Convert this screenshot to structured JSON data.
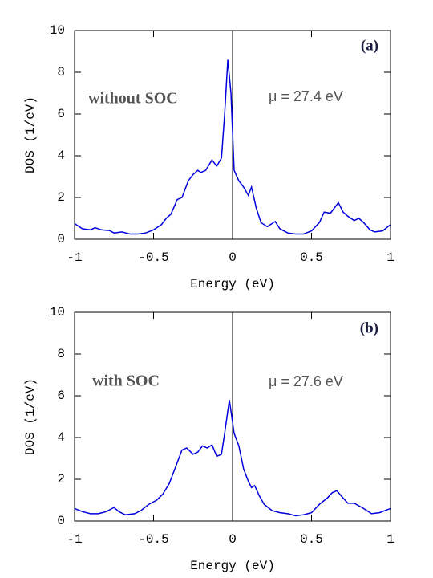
{
  "chart_data": [
    {
      "type": "line",
      "panel_label": "(a)",
      "annotations": [
        "without SOC",
        "μ = 27.4 eV"
      ],
      "x_label": "Energy (eV)",
      "y_label": "DOS (1/eV)",
      "xlim": [
        -1,
        1
      ],
      "ylim": [
        0,
        10
      ],
      "xticks": [
        -1,
        -0.5,
        0,
        0.5,
        1
      ],
      "yticks": [
        0,
        2,
        4,
        6,
        8,
        10
      ],
      "vline": 0,
      "x": [
        -1,
        -0.95,
        -0.9,
        -0.87,
        -0.83,
        -0.78,
        -0.75,
        -0.7,
        -0.65,
        -0.6,
        -0.55,
        -0.5,
        -0.45,
        -0.42,
        -0.39,
        -0.35,
        -0.32,
        -0.28,
        -0.25,
        -0.22,
        -0.2,
        -0.17,
        -0.13,
        -0.1,
        -0.07,
        -0.05,
        -0.03,
        -0.01,
        0.01,
        0.04,
        0.07,
        0.1,
        0.12,
        0.15,
        0.18,
        0.22,
        0.27,
        0.3,
        0.35,
        0.4,
        0.45,
        0.5,
        0.55,
        0.58,
        0.62,
        0.67,
        0.7,
        0.73,
        0.77,
        0.8,
        0.83,
        0.87,
        0.9,
        0.95,
        1.0
      ],
      "series": [
        {
          "color": "#0000dd",
          "values": [
            0.75,
            0.5,
            0.45,
            0.55,
            0.45,
            0.42,
            0.3,
            0.35,
            0.25,
            0.25,
            0.3,
            0.45,
            0.7,
            1.0,
            1.2,
            1.9,
            2.0,
            2.8,
            3.1,
            3.3,
            3.2,
            3.3,
            3.8,
            3.5,
            3.9,
            6.0,
            8.6,
            7.0,
            3.3,
            2.8,
            2.5,
            2.1,
            2.5,
            1.5,
            0.8,
            0.6,
            0.85,
            0.5,
            0.3,
            0.25,
            0.25,
            0.4,
            0.8,
            1.3,
            1.25,
            1.75,
            1.3,
            1.1,
            0.9,
            1.0,
            0.8,
            0.45,
            0.35,
            0.4,
            0.7
          ]
        }
      ]
    },
    {
      "type": "line",
      "panel_label": "(b)",
      "annotations": [
        "with SOC",
        "μ = 27.6 eV"
      ],
      "x_label": "Energy (eV)",
      "y_label": "DOS (1/eV)",
      "xlim": [
        -1,
        1
      ],
      "ylim": [
        0,
        10
      ],
      "xticks": [
        -1,
        -0.5,
        0,
        0.5,
        1
      ],
      "yticks": [
        0,
        2,
        4,
        6,
        8,
        10
      ],
      "vline": 0,
      "x": [
        -1,
        -0.95,
        -0.9,
        -0.85,
        -0.8,
        -0.75,
        -0.72,
        -0.68,
        -0.62,
        -0.58,
        -0.53,
        -0.48,
        -0.44,
        -0.4,
        -0.36,
        -0.32,
        -0.29,
        -0.25,
        -0.22,
        -0.19,
        -0.16,
        -0.13,
        -0.1,
        -0.07,
        -0.05,
        -0.02,
        0.01,
        0.04,
        0.07,
        0.1,
        0.12,
        0.14,
        0.17,
        0.2,
        0.25,
        0.3,
        0.35,
        0.4,
        0.45,
        0.5,
        0.55,
        0.6,
        0.63,
        0.66,
        0.7,
        0.73,
        0.77,
        0.83,
        0.88,
        0.93,
        1.0
      ],
      "series": [
        {
          "color": "#0000dd",
          "values": [
            0.6,
            0.45,
            0.35,
            0.35,
            0.45,
            0.65,
            0.45,
            0.3,
            0.35,
            0.5,
            0.8,
            1.0,
            1.3,
            1.8,
            2.6,
            3.4,
            3.5,
            3.2,
            3.3,
            3.6,
            3.5,
            3.65,
            3.1,
            3.2,
            4.2,
            5.8,
            4.2,
            3.6,
            2.5,
            1.9,
            1.6,
            1.7,
            1.2,
            0.8,
            0.5,
            0.4,
            0.35,
            0.25,
            0.3,
            0.4,
            0.8,
            1.1,
            1.35,
            1.45,
            1.1,
            0.85,
            0.85,
            0.6,
            0.35,
            0.4,
            0.6
          ]
        }
      ]
    }
  ]
}
